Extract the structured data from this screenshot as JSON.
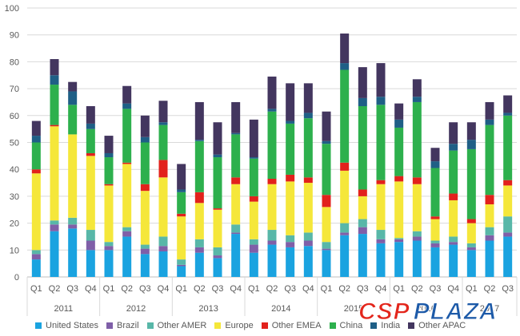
{
  "chart_data": {
    "type": "bar",
    "stacked": true,
    "title": "",
    "xlabel": "",
    "ylabel": "",
    "ylim": [
      0,
      100
    ],
    "yticks": [
      0,
      10,
      20,
      30,
      40,
      50,
      60,
      70,
      80,
      90,
      100
    ],
    "grid": true,
    "legend_position": "bottom",
    "categories": [
      "Q1",
      "Q2",
      "Q3",
      "Q4",
      "Q1",
      "Q2",
      "Q3",
      "Q4",
      "Q1",
      "Q2",
      "Q3",
      "Q4",
      "Q1",
      "Q2",
      "Q3",
      "Q4",
      "Q1",
      "Q2",
      "Q3",
      "Q4",
      "Q1",
      "Q2",
      "Q3",
      "Q4",
      "Q1",
      "Q2",
      "Q3"
    ],
    "groups": [
      {
        "label": "2011",
        "start": 0,
        "count": 4
      },
      {
        "label": "2012",
        "start": 4,
        "count": 4
      },
      {
        "label": "2013",
        "start": 8,
        "count": 4
      },
      {
        "label": "2014",
        "start": 12,
        "count": 4
      },
      {
        "label": "2015",
        "start": 16,
        "count": 4
      },
      {
        "label": "2016",
        "start": 20,
        "count": 4
      },
      {
        "label": "2017",
        "start": 24,
        "count": 3
      }
    ],
    "series": [
      {
        "name": "United States",
        "color": "#1aa3e0",
        "values": [
          6.5,
          17,
          18,
          10,
          10,
          15,
          8.5,
          9.5,
          4,
          9,
          7,
          16,
          9,
          12,
          11,
          11.5,
          10,
          15.5,
          16,
          12.5,
          13,
          13.5,
          11,
          12,
          10,
          13.5,
          15
        ]
      },
      {
        "name": "Brazil",
        "color": "#7f5fa8",
        "values": [
          2,
          2.5,
          1.5,
          3.5,
          1.5,
          2,
          2,
          2,
          0.5,
          2,
          1,
          0.5,
          3,
          1.5,
          2,
          2,
          0.5,
          1,
          2.5,
          1.5,
          1,
          1.5,
          1.5,
          1,
          1,
          2,
          1.5
        ]
      },
      {
        "name": "Other AMER",
        "color": "#58b7a8",
        "values": [
          1.5,
          1.5,
          2.5,
          4,
          1.5,
          1.5,
          1.5,
          3.5,
          2,
          3,
          3,
          3,
          2,
          4,
          2.5,
          3,
          2.5,
          3.5,
          3,
          3.5,
          0.5,
          2,
          1,
          2,
          1.5,
          3,
          6
        ]
      },
      {
        "name": "Europe",
        "color": "#f5e73a",
        "values": [
          28.5,
          35,
          31,
          27.5,
          21,
          23.5,
          20,
          22,
          16,
          13.5,
          14,
          15,
          14,
          17,
          20,
          18.5,
          13,
          19.5,
          8.5,
          17,
          21,
          17.5,
          8,
          13.5,
          7.5,
          8.5,
          11.5
        ]
      },
      {
        "name": "Other EMEA",
        "color": "#e2211c",
        "values": [
          1.5,
          0.5,
          0,
          1,
          0.5,
          0.5,
          2.5,
          6.5,
          1,
          4,
          0.5,
          2.5,
          2,
          2,
          2.5,
          2,
          4.5,
          3,
          2.5,
          1.5,
          2,
          2.5,
          1,
          2.5,
          1.5,
          3.5,
          2
        ]
      },
      {
        "name": "China",
        "color": "#2db04d",
        "values": [
          10,
          15,
          11,
          9,
          10,
          20,
          15.5,
          13,
          8,
          19,
          19,
          16,
          14,
          25,
          19,
          22,
          19,
          34.5,
          31,
          28,
          18,
          28,
          18,
          16,
          26,
          26,
          24
        ]
      },
      {
        "name": "India",
        "color": "#1f5f86",
        "values": [
          2.5,
          3.5,
          5,
          2,
          1.5,
          2,
          2,
          1,
          1,
          0.5,
          1,
          0.5,
          0.5,
          1,
          1,
          2,
          1,
          2.5,
          3,
          3,
          3,
          2,
          2.5,
          2.5,
          3.5,
          2,
          1
        ]
      },
      {
        "name": "Other APAC",
        "color": "#43365f",
        "values": [
          5.5,
          6,
          3.5,
          6.5,
          6.5,
          6.5,
          8,
          8,
          9.5,
          14,
          12,
          11.5,
          14,
          12,
          14,
          11,
          11,
          11,
          11.5,
          12.5,
          6,
          6.5,
          5,
          8,
          6.5,
          6.5,
          6.5
        ]
      }
    ]
  },
  "watermark": {
    "csp": "CSP",
    "plaza": "PLAZA"
  }
}
